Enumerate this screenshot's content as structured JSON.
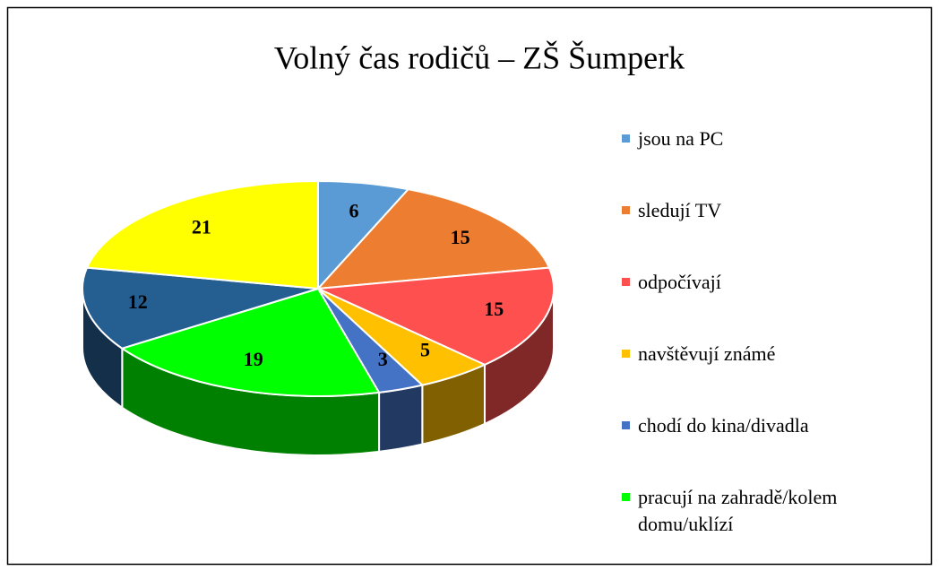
{
  "chart_data": {
    "type": "pie3d",
    "title": "Volný čas rodičů – ZŠ Šumperk",
    "categories": [
      "jsou na PC",
      "sledují TV",
      "odpočívají",
      "navštěvují známé",
      "chodí do kina/divadla",
      "pracují na zahradě/kolem domu/uklízí",
      null,
      null
    ],
    "values": [
      6,
      15,
      15,
      5,
      3,
      19,
      12,
      21
    ],
    "colors": [
      "#5b9bd5",
      "#ed7d31",
      "#ff5050",
      "#ffc000",
      "#4472c4",
      "#00ff00",
      "#255e91",
      "#ffff00"
    ]
  }
}
